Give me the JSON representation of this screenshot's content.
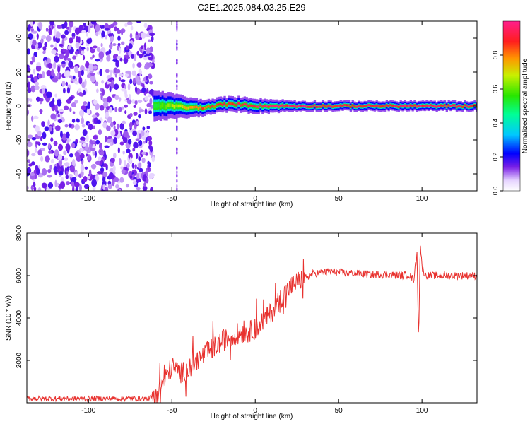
{
  "figure": {
    "title": "C2E1.2025.084.03.25.E29"
  },
  "chart_data": [
    {
      "type": "heatmap",
      "xlabel": "Height of straight line (km)",
      "ylabel": "Frequency (Hz)",
      "xlim": [
        -137,
        133
      ],
      "ylim": [
        -50,
        50
      ],
      "x_ticks": [
        -100,
        -50,
        0,
        50,
        100
      ],
      "y_ticks": [
        -40,
        -20,
        0,
        20,
        40
      ],
      "colorbar": {
        "label": "Normalized spectral amplitude",
        "range": [
          0,
          1
        ],
        "ticks": [
          0.0,
          0.2,
          0.4,
          0.6,
          0.8
        ]
      },
      "noise_region_x": [
        -137,
        -61
      ],
      "gap_marker_x": -47,
      "signal_band": [
        {
          "x": -61,
          "center_hz": 0,
          "halfwidth_hz": 6,
          "peak": 0.55
        },
        {
          "x": -50,
          "center_hz": 0,
          "halfwidth_hz": 5,
          "peak": 0.65
        },
        {
          "x": -40,
          "center_hz": -1,
          "halfwidth_hz": 4,
          "peak": 0.75
        },
        {
          "x": -30,
          "center_hz": -1,
          "halfwidth_hz": 3,
          "peak": 0.85
        },
        {
          "x": -20,
          "center_hz": 1,
          "halfwidth_hz": 3,
          "peak": 0.9
        },
        {
          "x": -10,
          "center_hz": 1,
          "halfwidth_hz": 3,
          "peak": 0.9
        },
        {
          "x": 0,
          "center_hz": 0,
          "halfwidth_hz": 3,
          "peak": 0.95
        },
        {
          "x": 25,
          "center_hz": 0,
          "halfwidth_hz": 2,
          "peak": 0.95
        },
        {
          "x": 50,
          "center_hz": 0,
          "halfwidth_hz": 2,
          "peak": 0.9
        },
        {
          "x": 95,
          "center_hz": 0,
          "halfwidth_hz": 2,
          "peak": 0.95
        },
        {
          "x": 133,
          "center_hz": 0,
          "halfwidth_hz": 2,
          "peak": 0.9
        }
      ]
    },
    {
      "type": "line",
      "xlabel": "Height of straight line (km)",
      "ylabel": "SNR (10 * v/v)",
      "xlim": [
        -137,
        133
      ],
      "ylim": [
        0,
        8000
      ],
      "x_ticks": [
        -100,
        -50,
        0,
        50,
        100
      ],
      "y_ticks": [
        2000,
        4000,
        6000,
        8000
      ],
      "color": "#e8322f",
      "series": [
        {
          "x": [
            -137,
            -120,
            -100,
            -80,
            -65,
            -60,
            -55,
            -50,
            -45,
            -40,
            -35,
            -30,
            -25,
            -20,
            -15,
            -10,
            -5,
            0,
            5,
            10,
            15,
            20,
            25,
            30,
            35,
            40,
            45,
            50,
            60,
            70,
            80,
            88,
            92,
            95,
            97,
            98,
            99,
            100,
            102,
            110,
            120,
            133
          ],
          "values": [
            200,
            200,
            200,
            200,
            200,
            300,
            1000,
            1700,
            1400,
            1600,
            2000,
            2300,
            2600,
            2900,
            3100,
            3300,
            3300,
            3500,
            3900,
            4300,
            4900,
            5400,
            5700,
            5900,
            6100,
            6150,
            6200,
            6150,
            6100,
            6050,
            6050,
            6000,
            6050,
            5800,
            7000,
            3000,
            7600,
            6400,
            6000,
            6000,
            6000,
            6000
          ]
        }
      ]
    }
  ]
}
